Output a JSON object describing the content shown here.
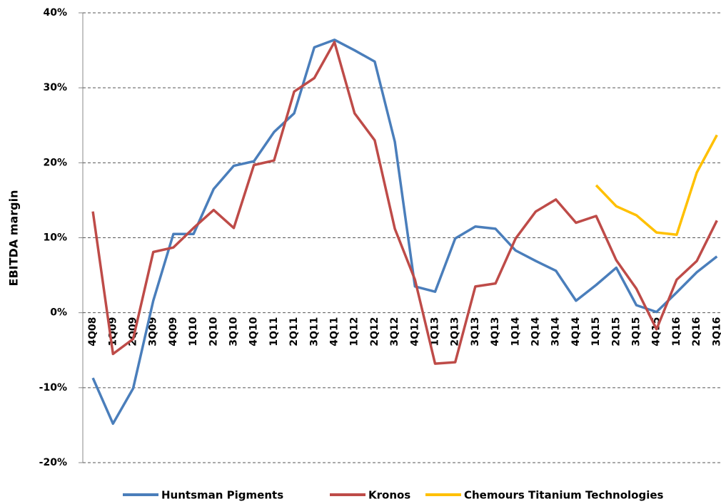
{
  "chart_data": {
    "type": "line",
    "y_label": "EBITDA margin",
    "categories": [
      "4Q08",
      "1Q09",
      "2Q09",
      "3Q09",
      "4Q09",
      "1Q10",
      "2Q10",
      "3Q10",
      "4Q10",
      "1Q11",
      "2Q11",
      "3Q11",
      "4Q11",
      "1Q12",
      "2Q12",
      "3Q12",
      "4Q12",
      "1Q13",
      "2Q13",
      "3Q13",
      "4Q13",
      "1Q14",
      "2Q14",
      "3Q14",
      "4Q14",
      "1Q15",
      "2Q15",
      "3Q15",
      "4Q15",
      "1Q16",
      "2Q16",
      "3Q16"
    ],
    "series": [
      {
        "name": "Huntsman Pigments",
        "color": "#4a7ebb",
        "values": [
          -8.7,
          -14.8,
          -10.1,
          1.6,
          10.5,
          10.5,
          16.5,
          19.6,
          20.2,
          24.1,
          26.6,
          35.4,
          36.4,
          35.0,
          33.5,
          22.8,
          3.5,
          2.8,
          9.9,
          11.5,
          11.2,
          8.3,
          6.9,
          5.6,
          1.6,
          3.7,
          6.0,
          1.0,
          0.1,
          2.7,
          5.4,
          7.5
        ]
      },
      {
        "name": "Kronos",
        "color": "#be4b48",
        "values": [
          13.5,
          -5.5,
          -3.5,
          8.1,
          8.7,
          11.3,
          13.7,
          11.3,
          19.7,
          20.3,
          29.5,
          31.3,
          36.1,
          26.6,
          23.0,
          11.2,
          4.4,
          -6.8,
          -6.6,
          3.5,
          3.9,
          9.9,
          13.5,
          15.1,
          12.0,
          12.9,
          7.0,
          3.2,
          -2.2,
          4.4,
          6.9,
          12.3
        ]
      },
      {
        "name": "Chemours Titanium  Technologies",
        "color": "#ffc000",
        "values": [
          null,
          null,
          null,
          null,
          null,
          null,
          null,
          null,
          null,
          null,
          null,
          null,
          null,
          null,
          null,
          null,
          null,
          null,
          null,
          null,
          null,
          null,
          null,
          null,
          null,
          17.0,
          14.2,
          13.0,
          10.7,
          10.4,
          18.7,
          23.7
        ]
      }
    ],
    "ylim": [
      -20,
      40
    ],
    "yticks": [
      {
        "value": -20,
        "label": "-20%"
      },
      {
        "value": -10,
        "label": "-10%"
      },
      {
        "value": 0,
        "label": "0%"
      },
      {
        "value": 10,
        "label": "10%"
      },
      {
        "value": 20,
        "label": "20%"
      },
      {
        "value": 30,
        "label": "30%"
      },
      {
        "value": 40,
        "label": "40%"
      }
    ],
    "grid": true,
    "legend": "bottom"
  }
}
